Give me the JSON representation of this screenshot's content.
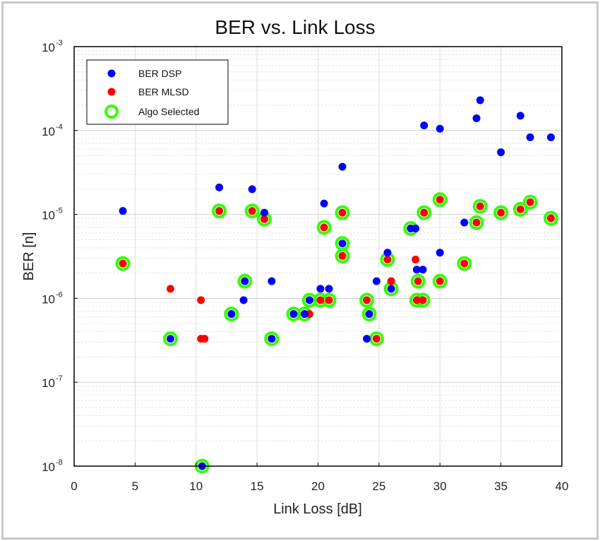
{
  "chart_data": {
    "type": "scatter",
    "title": "BER vs. Link Loss",
    "xlabel": "Link Loss [dB]",
    "ylabel": "BER [n]",
    "x_scale": "linear",
    "y_scale": "log",
    "xlim": [
      0,
      40
    ],
    "ylim": [
      1e-08,
      0.001
    ],
    "grid": true,
    "legend_position": "top-left",
    "x_ticks": [
      0,
      5,
      10,
      15,
      20,
      25,
      30,
      35,
      40
    ],
    "y_ticks": [
      {
        "base": "10",
        "exp": "-8",
        "value": 1e-08
      },
      {
        "base": "10",
        "exp": "-7",
        "value": 1e-07
      },
      {
        "base": "10",
        "exp": "-6",
        "value": 1e-06
      },
      {
        "base": "10",
        "exp": "-5",
        "value": 1e-05
      },
      {
        "base": "10",
        "exp": "-4",
        "value": 0.0001
      },
      {
        "base": "10",
        "exp": "-3",
        "value": 0.001
      }
    ],
    "series": [
      {
        "name": "BER DSP",
        "color": "#0000ff",
        "marker": "filled-circle",
        "points": [
          [
            4.0,
            1.1e-05
          ],
          [
            7.9,
            3.3e-07
          ],
          [
            10.5,
            1e-08
          ],
          [
            11.9,
            2.1e-05
          ],
          [
            12.9,
            6.5e-07
          ],
          [
            13.9,
            9.5e-07
          ],
          [
            14.0,
            1.6e-06
          ],
          [
            14.6,
            2e-05
          ],
          [
            15.6,
            1.05e-05
          ],
          [
            16.2,
            1.6e-06
          ],
          [
            16.2,
            3.3e-07
          ],
          [
            18.0,
            6.5e-07
          ],
          [
            18.9,
            6.5e-07
          ],
          [
            19.3,
            9.5e-07
          ],
          [
            20.2,
            1.3e-06
          ],
          [
            20.5,
            1.35e-05
          ],
          [
            20.9,
            1.3e-06
          ],
          [
            22.0,
            3.7e-05
          ],
          [
            22.0,
            4.5e-06
          ],
          [
            24.0,
            3.3e-07
          ],
          [
            24.2,
            6.5e-07
          ],
          [
            24.8,
            1.6e-06
          ],
          [
            25.7,
            3.5e-06
          ],
          [
            26.0,
            1.3e-06
          ],
          [
            27.6,
            6.8e-06
          ],
          [
            28.0,
            6.8e-06
          ],
          [
            28.1,
            2.2e-06
          ],
          [
            28.6,
            2.2e-06
          ],
          [
            28.7,
            0.000115
          ],
          [
            30.0,
            0.000105
          ],
          [
            30.0,
            3.5e-06
          ],
          [
            32.0,
            8e-06
          ],
          [
            33.0,
            0.00014
          ],
          [
            33.3,
            0.00023
          ],
          [
            35.0,
            5.5e-05
          ],
          [
            36.6,
            0.00015
          ],
          [
            37.4,
            8.3e-05
          ],
          [
            39.1,
            8.3e-05
          ]
        ]
      },
      {
        "name": "BER MLSD",
        "color": "#ff0000",
        "marker": "filled-circle",
        "points": [
          [
            4.0,
            2.6e-06
          ],
          [
            7.9,
            1.3e-06
          ],
          [
            10.4,
            9.5e-07
          ],
          [
            10.4,
            3.3e-07
          ],
          [
            10.7,
            3.3e-07
          ],
          [
            11.9,
            1.1e-05
          ],
          [
            12.9,
            6.5e-07
          ],
          [
            14.0,
            1.6e-06
          ],
          [
            14.6,
            1.1e-05
          ],
          [
            15.6,
            8.8e-06
          ],
          [
            16.2,
            3.3e-07
          ],
          [
            18.0,
            6.5e-07
          ],
          [
            18.9,
            6.5e-07
          ],
          [
            19.3,
            6.5e-07
          ],
          [
            20.2,
            9.5e-07
          ],
          [
            20.5,
            7e-06
          ],
          [
            20.9,
            9.5e-07
          ],
          [
            22.0,
            1.05e-05
          ],
          [
            22.0,
            3.2e-06
          ],
          [
            24.0,
            9.5e-07
          ],
          [
            24.2,
            6.5e-07
          ],
          [
            24.8,
            3.3e-07
          ],
          [
            25.7,
            2.9e-06
          ],
          [
            26.0,
            1.6e-06
          ],
          [
            27.6,
            6.8e-06
          ],
          [
            28.0,
            2.9e-06
          ],
          [
            28.1,
            9.5e-07
          ],
          [
            28.2,
            1.6e-06
          ],
          [
            28.6,
            9.5e-07
          ],
          [
            28.7,
            1.05e-05
          ],
          [
            30.0,
            1.6e-06
          ],
          [
            30.0,
            1.5e-05
          ],
          [
            32.0,
            2.6e-06
          ],
          [
            33.0,
            8e-06
          ],
          [
            33.3,
            1.25e-05
          ],
          [
            35.0,
            1.05e-05
          ],
          [
            36.6,
            1.15e-05
          ],
          [
            37.4,
            1.4e-05
          ],
          [
            39.1,
            9e-06
          ]
        ]
      },
      {
        "name": "Algo Selected",
        "color": "#33ff00",
        "marker": "open-circle",
        "points": [
          [
            4.0,
            2.6e-06
          ],
          [
            7.9,
            3.3e-07
          ],
          [
            10.5,
            1e-08
          ],
          [
            11.9,
            1.1e-05
          ],
          [
            12.9,
            6.5e-07
          ],
          [
            14.0,
            1.6e-06
          ],
          [
            14.6,
            1.1e-05
          ],
          [
            15.6,
            8.8e-06
          ],
          [
            16.2,
            3.3e-07
          ],
          [
            18.0,
            6.5e-07
          ],
          [
            18.9,
            6.5e-07
          ],
          [
            19.3,
            9.5e-07
          ],
          [
            20.2,
            9.5e-07
          ],
          [
            20.5,
            7e-06
          ],
          [
            20.9,
            9.5e-07
          ],
          [
            22.0,
            1.05e-05
          ],
          [
            22.0,
            4.5e-06
          ],
          [
            22.0,
            3.2e-06
          ],
          [
            24.0,
            9.5e-07
          ],
          [
            24.2,
            6.5e-07
          ],
          [
            24.8,
            3.3e-07
          ],
          [
            25.7,
            2.9e-06
          ],
          [
            26.0,
            1.3e-06
          ],
          [
            27.6,
            6.8e-06
          ],
          [
            28.1,
            9.5e-07
          ],
          [
            28.2,
            1.6e-06
          ],
          [
            28.6,
            9.5e-07
          ],
          [
            28.7,
            1.05e-05
          ],
          [
            30.0,
            1.6e-06
          ],
          [
            30.0,
            1.5e-05
          ],
          [
            32.0,
            2.6e-06
          ],
          [
            33.0,
            8e-06
          ],
          [
            33.3,
            1.25e-05
          ],
          [
            35.0,
            1.05e-05
          ],
          [
            36.6,
            1.15e-05
          ],
          [
            37.4,
            1.4e-05
          ],
          [
            39.1,
            9e-06
          ]
        ]
      }
    ]
  }
}
